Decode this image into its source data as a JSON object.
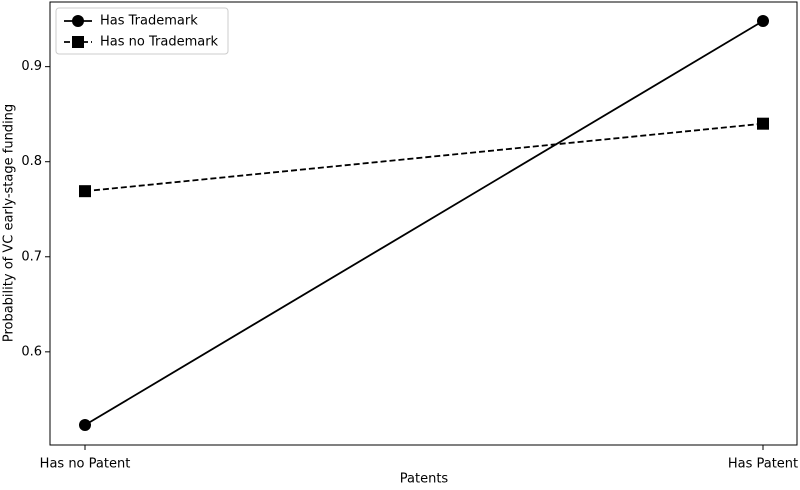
{
  "chart_data": {
    "type": "line",
    "xlabel": "Patents",
    "ylabel": "Probability of VC early-stage funding",
    "categories": [
      "Has no Patent",
      "Has Patent"
    ],
    "series": [
      {
        "name": "Has Trademark",
        "color": "#000000",
        "linestyle": "solid",
        "marker": "circle",
        "values": [
          0.523,
          0.948
        ]
      },
      {
        "name": "Has no Trademark",
        "color": "#000000",
        "linestyle": "dashed",
        "marker": "square",
        "values": [
          0.769,
          0.84
        ]
      }
    ],
    "ylim": [
      0.502,
      0.968
    ],
    "yticks": [
      0.6,
      0.7,
      0.8,
      0.9
    ],
    "grid": false,
    "legend": "upper-left"
  }
}
